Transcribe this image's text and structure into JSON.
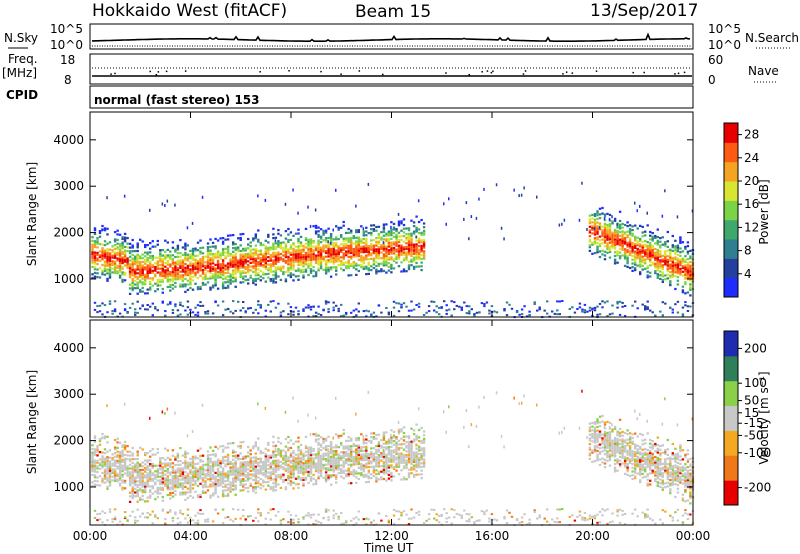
{
  "header": {
    "title": "Hokkaido West (fitACF)",
    "beam": "Beam 15",
    "date": "13/Sep/2017"
  },
  "params": {
    "nsky_label": "N.Sky",
    "nsky_top": "10^5",
    "nsky_bottom": "10^0",
    "nsearch_label": "N.Search",
    "nsearch_top": "10^5",
    "nsearch_bottom": "10^0",
    "freq_label": "Freq.",
    "freq_unit": "[MHz]",
    "freq_top": "18",
    "freq_bottom": "8",
    "nave_label": "Nave",
    "nave_top": "60",
    "nave_bottom": "0",
    "cpid_label": "CPID",
    "cpid_text": "normal (fast stereo) 153"
  },
  "colors": {
    "power": [
      "#1f2cff",
      "#233fa0",
      "#2e7f90",
      "#3fa86c",
      "#7bd448",
      "#d8e632",
      "#f5a322",
      "#ff5a14",
      "#e80000"
    ],
    "velocity": [
      "#e80000",
      "#f07818",
      "#f5a822",
      "#c8c8c8",
      "#8ad04a",
      "#2f7f5a",
      "#1f2cb0"
    ]
  },
  "chart_data": [
    {
      "type": "heatmap",
      "name": "power",
      "xlabel": "Time UT",
      "ylabel": "Slant Range [km]",
      "xlim": [
        0,
        24
      ],
      "ylim": [
        180,
        4600
      ],
      "x_ticks": [
        "00:00",
        "04:00",
        "08:00",
        "12:00",
        "16:00",
        "20:00",
        "00:00"
      ],
      "y_ticks": [
        1000,
        2000,
        3000,
        4000
      ],
      "colorbar": {
        "label": "Power [dB]",
        "ticks": [
          4,
          8,
          12,
          16,
          20,
          24,
          28
        ],
        "range": [
          0,
          30
        ]
      },
      "echo_regions": [
        {
          "start": 0.2,
          "end": 13.3,
          "peak_range_km": 1300,
          "description_value": "main band"
        },
        {
          "start": 19.8,
          "end": 24.0,
          "peak_range_km": 1400,
          "description_value": "evening band"
        },
        {
          "start": 0.0,
          "end": 24.0,
          "peak_range_km": 300,
          "description_value": "near-range"
        }
      ]
    },
    {
      "type": "heatmap",
      "name": "velocity",
      "xlabel": "Time UT",
      "ylabel": "Slant Range [km]",
      "xlim": [
        0,
        24
      ],
      "ylim": [
        180,
        4600
      ],
      "x_ticks": [
        "00:00",
        "04:00",
        "08:00",
        "12:00",
        "16:00",
        "20:00",
        "00:00"
      ],
      "y_ticks": [
        1000,
        2000,
        3000,
        4000
      ],
      "colorbar": {
        "label": "Velocity [m s⁻¹]",
        "ticks": [
          200,
          100,
          50,
          15,
          -15,
          -50,
          -100,
          -200
        ],
        "range": [
          -250,
          250
        ]
      }
    }
  ]
}
